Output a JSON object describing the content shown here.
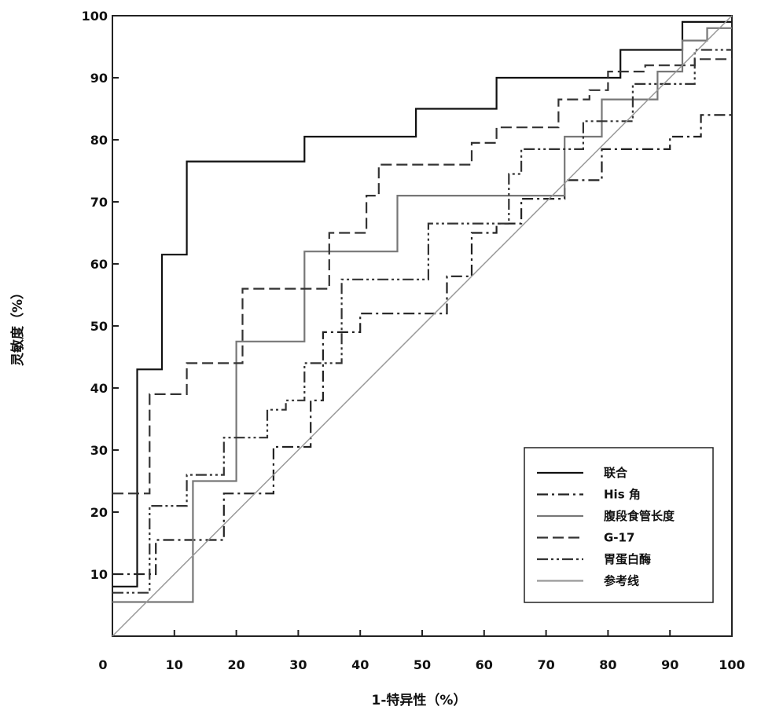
{
  "chart_data": {
    "type": "line",
    "xlabel": "1-特异性（%）",
    "ylabel": "灵敏度（%）",
    "xlim": [
      0,
      100
    ],
    "ylim": [
      0,
      100
    ],
    "xticks": [
      "0",
      "10",
      "20",
      "30",
      "40",
      "50",
      "60",
      "70",
      "80",
      "90",
      "100"
    ],
    "yticks": [
      "10",
      "20",
      "30",
      "40",
      "50",
      "60",
      "70",
      "80",
      "90",
      "100"
    ],
    "grid": false,
    "legend_position": "bottom-right",
    "series": [
      {
        "name": "联合",
        "color": "#111111",
        "dash": "solid",
        "points": [
          [
            0,
            8
          ],
          [
            4,
            8
          ],
          [
            4,
            43
          ],
          [
            8,
            43
          ],
          [
            8,
            61.5
          ],
          [
            12,
            61.5
          ],
          [
            12,
            76.5
          ],
          [
            31,
            76.5
          ],
          [
            31,
            80.5
          ],
          [
            49,
            80.5
          ],
          [
            49,
            85
          ],
          [
            62,
            85
          ],
          [
            62,
            90
          ],
          [
            82,
            90
          ],
          [
            82,
            94.5
          ],
          [
            92,
            94.5
          ],
          [
            92,
            99
          ],
          [
            100,
            99
          ]
        ]
      },
      {
        "name": "His 角",
        "color": "#222222",
        "dash": "dashdot",
        "points": [
          [
            0,
            10
          ],
          [
            7,
            10
          ],
          [
            7,
            15.5
          ],
          [
            18,
            15.5
          ],
          [
            18,
            23
          ],
          [
            26,
            23
          ],
          [
            26,
            30.5
          ],
          [
            32,
            30.5
          ],
          [
            32,
            38
          ],
          [
            34,
            38
          ],
          [
            34,
            49
          ],
          [
            40,
            49
          ],
          [
            40,
            52
          ],
          [
            54,
            52
          ],
          [
            54,
            58
          ],
          [
            58,
            58
          ],
          [
            58,
            65
          ],
          [
            62,
            65
          ],
          [
            62,
            66.5
          ],
          [
            66,
            66.5
          ],
          [
            66,
            70.5
          ],
          [
            73,
            70.5
          ],
          [
            73,
            73.5
          ],
          [
            79,
            73.5
          ],
          [
            79,
            78.5
          ],
          [
            90,
            78.5
          ],
          [
            90,
            80.5
          ],
          [
            95,
            80.5
          ],
          [
            95,
            84
          ],
          [
            100,
            84
          ]
        ]
      },
      {
        "name": "腹段食管长度",
        "color": "#777777",
        "dash": "solid",
        "points": [
          [
            0,
            5.5
          ],
          [
            13,
            5.5
          ],
          [
            13,
            25
          ],
          [
            20,
            25
          ],
          [
            20,
            47.5
          ],
          [
            31,
            47.5
          ],
          [
            31,
            62
          ],
          [
            46,
            62
          ],
          [
            46,
            71
          ],
          [
            73,
            71
          ],
          [
            73,
            80.5
          ],
          [
            79,
            80.5
          ],
          [
            79,
            86.5
          ],
          [
            88,
            86.5
          ],
          [
            88,
            91
          ],
          [
            92,
            91
          ],
          [
            92,
            96
          ],
          [
            96,
            96
          ],
          [
            96,
            98
          ],
          [
            100,
            98
          ]
        ]
      },
      {
        "name": "G-17",
        "color": "#333333",
        "dash": "dash",
        "points": [
          [
            0,
            23
          ],
          [
            6,
            23
          ],
          [
            6,
            39
          ],
          [
            12,
            39
          ],
          [
            12,
            44
          ],
          [
            21,
            44
          ],
          [
            21,
            56
          ],
          [
            35,
            56
          ],
          [
            35,
            65
          ],
          [
            41,
            65
          ],
          [
            41,
            71
          ],
          [
            43,
            71
          ],
          [
            43,
            76
          ],
          [
            58,
            76
          ],
          [
            58,
            79.5
          ],
          [
            62,
            79.5
          ],
          [
            62,
            82
          ],
          [
            72,
            82
          ],
          [
            72,
            86.5
          ],
          [
            77,
            86.5
          ],
          [
            77,
            88
          ],
          [
            80,
            88
          ],
          [
            80,
            91
          ],
          [
            86,
            91
          ],
          [
            86,
            92
          ],
          [
            94,
            92
          ],
          [
            94,
            93
          ],
          [
            100,
            93
          ]
        ]
      },
      {
        "name": "胃蛋白酶",
        "color": "#333333",
        "dash": "dashdotdot",
        "points": [
          [
            0,
            7
          ],
          [
            6,
            7
          ],
          [
            6,
            21
          ],
          [
            12,
            21
          ],
          [
            12,
            26
          ],
          [
            18,
            26
          ],
          [
            18,
            32
          ],
          [
            25,
            32
          ],
          [
            25,
            36.5
          ],
          [
            28,
            36.5
          ],
          [
            28,
            38
          ],
          [
            31,
            38
          ],
          [
            31,
            44
          ],
          [
            37,
            44
          ],
          [
            37,
            57.5
          ],
          [
            51,
            57.5
          ],
          [
            51,
            66.5
          ],
          [
            64,
            66.5
          ],
          [
            64,
            74.5
          ],
          [
            66,
            74.5
          ],
          [
            66,
            78.5
          ],
          [
            76,
            78.5
          ],
          [
            76,
            83
          ],
          [
            84,
            83
          ],
          [
            84,
            89
          ],
          [
            94,
            89
          ],
          [
            94,
            94.5
          ],
          [
            100,
            94.5
          ]
        ]
      },
      {
        "name": "参考线",
        "color": "#999999",
        "dash": "solid",
        "points": [
          [
            0,
            0
          ],
          [
            100,
            100
          ]
        ]
      }
    ]
  }
}
